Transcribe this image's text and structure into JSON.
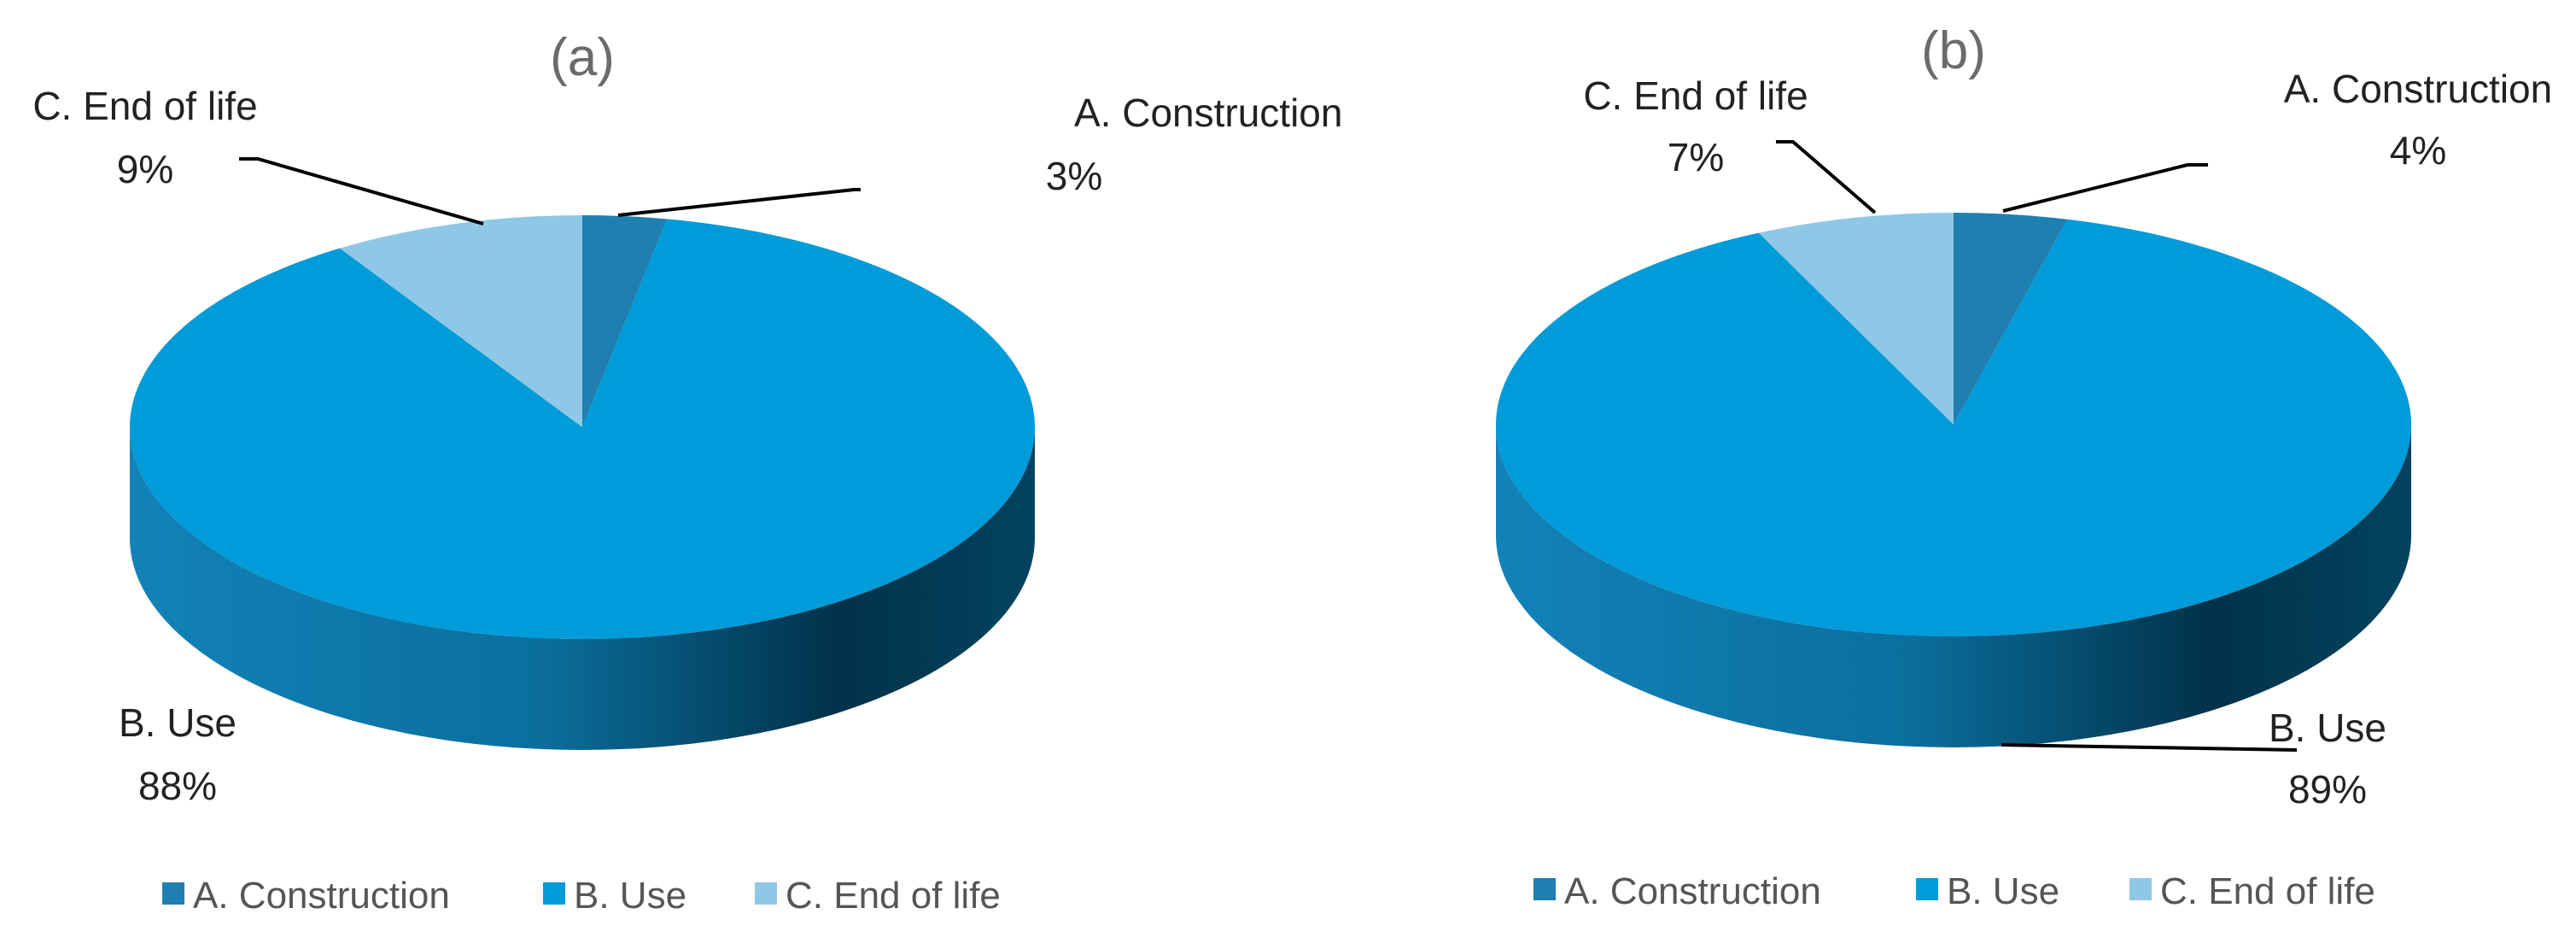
{
  "colors": {
    "construction": "#1f7fb0",
    "use": "#009bd9",
    "use_side_light": "#1282b8",
    "use_side_dark": "#01324a",
    "end_of_life": "#8fc8e6",
    "leader_line": "#000000",
    "text": "#222222"
  },
  "chart_data": [
    {
      "type": "pie",
      "variant": "3d",
      "title": "(a)",
      "categories": [
        "A. Construction",
        "B. Use",
        "C. End of life"
      ],
      "values": [
        3,
        88,
        9
      ],
      "data_labels": [
        {
          "category": "A. Construction",
          "value": "3%"
        },
        {
          "category": "B. Use",
          "value": "88%"
        },
        {
          "category": "C. End of life",
          "value": "9%"
        }
      ],
      "legend": {
        "position": "bottom",
        "entries": [
          "A. Construction",
          "B. Use",
          "C. End of life"
        ]
      }
    },
    {
      "type": "pie",
      "variant": "3d",
      "title": "(b)",
      "categories": [
        "A. Construction",
        "B. Use",
        "C. End of life"
      ],
      "values": [
        4,
        89,
        7
      ],
      "data_labels": [
        {
          "category": "A. Construction",
          "value": "4%"
        },
        {
          "category": "B. Use",
          "value": "89%"
        },
        {
          "category": "C. End of life",
          "value": "7%"
        }
      ],
      "legend": {
        "position": "bottom",
        "entries": [
          "A. Construction",
          "B. Use",
          "C. End of life"
        ]
      }
    }
  ]
}
